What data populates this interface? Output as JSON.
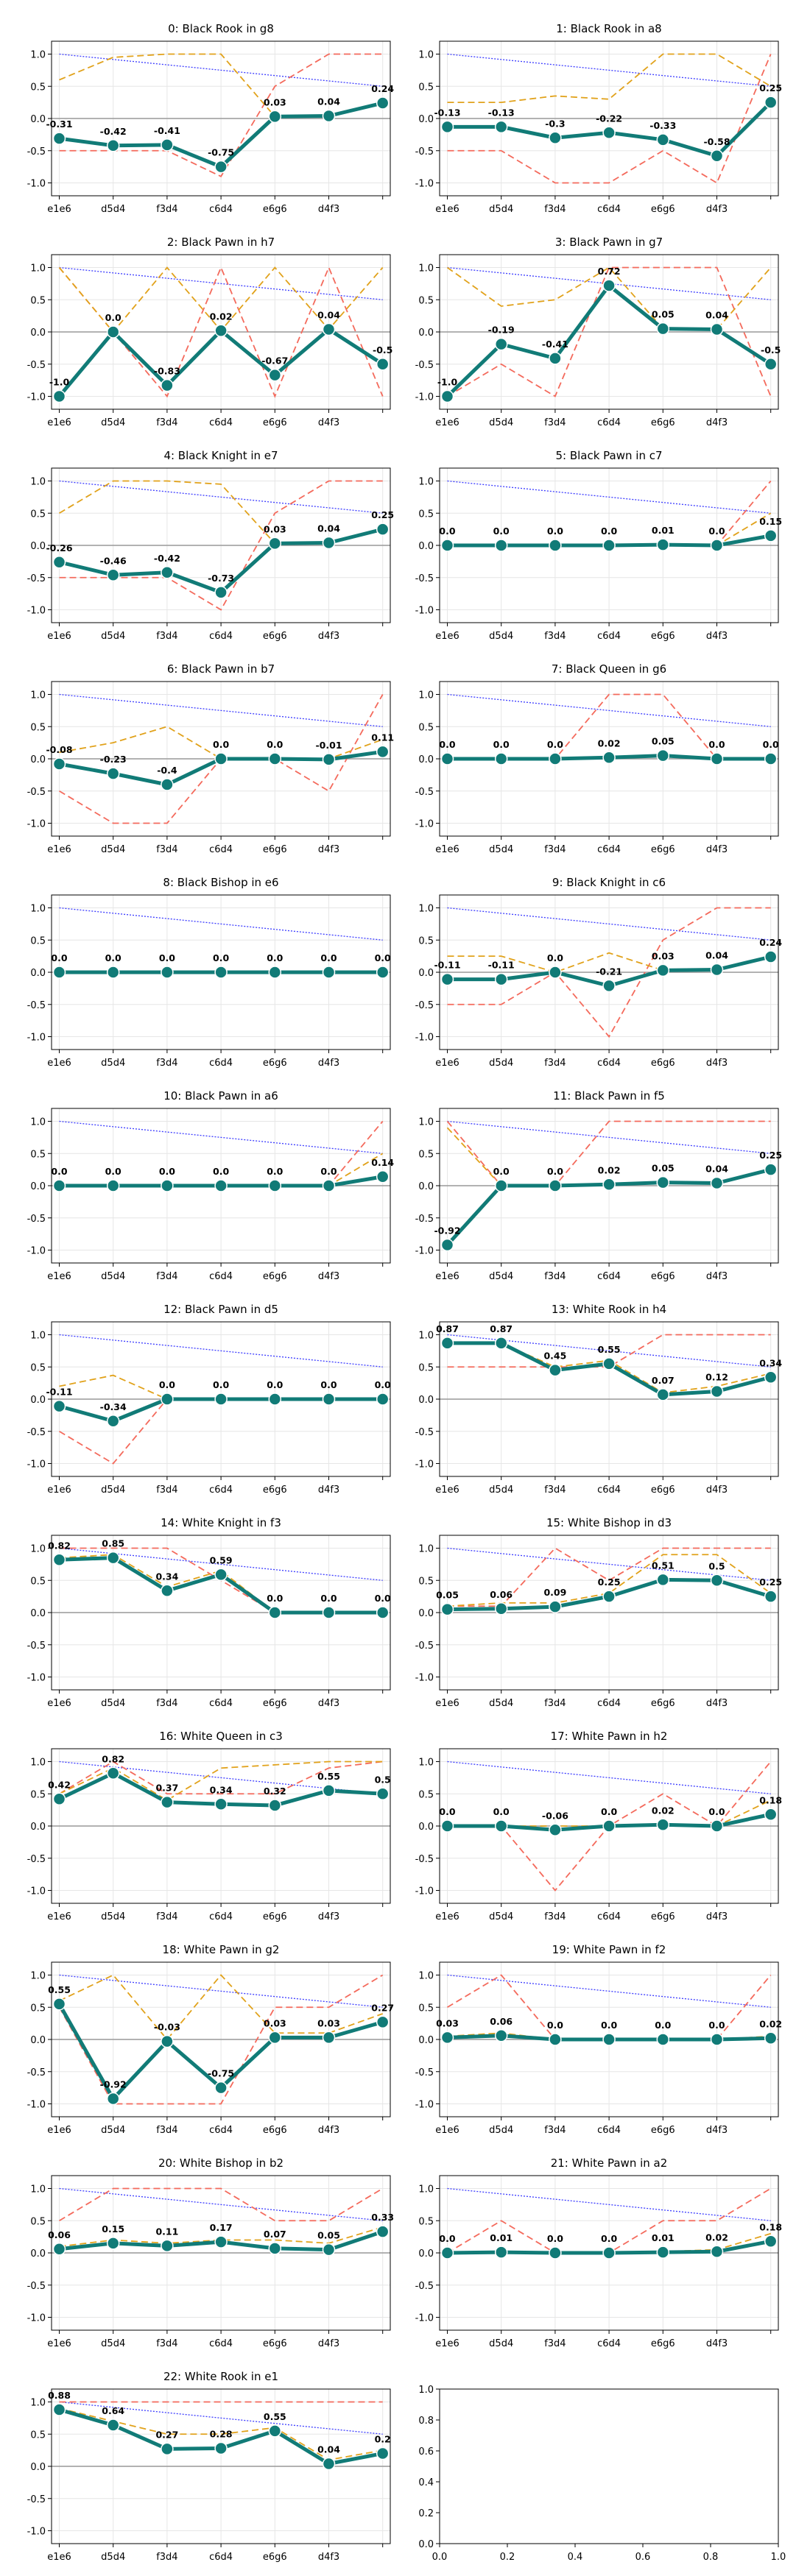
{
  "figure": {
    "empty_panel_ticks": [
      "0.0",
      "0.2",
      "0.4",
      "0.6",
      "0.8",
      "1.0"
    ]
  },
  "chart_data": {
    "type": "line",
    "x": [
      "e1e6",
      "d5d4",
      "f3d4",
      "c6d4",
      "e6g6",
      "d4f3",
      ""
    ],
    "ylim": [
      -1.2,
      1.2
    ],
    "yticks": [
      "-1.0",
      "-0.5",
      "0.0",
      "0.5",
      "1.0"
    ],
    "grid": true,
    "colors": {
      "main": "#117b77",
      "orange": "#e1a21b",
      "red": "#f46a5c",
      "blue": "#3b3bff",
      "zero": "#999999"
    },
    "panels": [
      {
        "title": "0: Black Rook in g8",
        "main": [
          -0.31,
          -0.42,
          -0.41,
          -0.75,
          0.03,
          0.04,
          0.24
        ],
        "labels": [
          "-0.31",
          "-0.42",
          "-0.41",
          "-0.75",
          "0.03",
          "0.04",
          "0.24"
        ],
        "orange": [
          0.6,
          0.95,
          1.0,
          1.0,
          0.03,
          0.05,
          0.25
        ],
        "red": [
          -0.5,
          -0.5,
          -0.5,
          -0.9,
          0.5,
          1.0,
          1.0
        ]
      },
      {
        "title": "1: Black Rook in a8",
        "main": [
          -0.13,
          -0.13,
          -0.3,
          -0.22,
          -0.33,
          -0.58,
          0.25
        ],
        "labels": [
          "-0.13",
          "-0.13",
          "-0.3",
          "-0.22",
          "-0.33",
          "-0.58",
          "0.25"
        ],
        "orange": [
          0.25,
          0.25,
          0.35,
          0.3,
          1.0,
          1.0,
          0.5
        ],
        "red": [
          -0.5,
          -0.5,
          -1.0,
          -1.0,
          -0.5,
          -1.0,
          1.0
        ]
      },
      {
        "title": "2: Black Pawn in h7",
        "main": [
          -1.0,
          0.0,
          -0.83,
          0.02,
          -0.67,
          0.04,
          -0.5
        ],
        "labels": [
          "-1.0",
          "0.0",
          "-0.83",
          "0.02",
          "-0.67",
          "0.04",
          "-0.5"
        ],
        "orange": [
          1.0,
          0.0,
          1.0,
          0.02,
          1.0,
          0.04,
          1.0
        ],
        "red": [
          1.0,
          0.0,
          -1.0,
          1.0,
          -1.0,
          1.0,
          -1.0
        ]
      },
      {
        "title": "3: Black Pawn in g7",
        "main": [
          -1.0,
          -0.19,
          -0.41,
          0.72,
          0.05,
          0.04,
          -0.5
        ],
        "labels": [
          "-1.0",
          "-0.19",
          "-0.41",
          "0.72",
          "0.05",
          "0.04",
          "-0.5"
        ],
        "orange": [
          1.0,
          0.4,
          0.5,
          1.0,
          0.05,
          0.04,
          1.0
        ],
        "red": [
          -1.0,
          -0.5,
          -1.0,
          1.0,
          1.0,
          1.0,
          -1.0
        ]
      },
      {
        "title": "4: Black Knight in e7",
        "main": [
          -0.26,
          -0.46,
          -0.42,
          -0.73,
          0.03,
          0.04,
          0.25
        ],
        "labels": [
          "-0.26",
          "-0.46",
          "-0.42",
          "-0.73",
          "0.03",
          "0.04",
          "0.25"
        ],
        "orange": [
          0.5,
          1.0,
          1.0,
          0.95,
          0.03,
          0.05,
          0.25
        ],
        "red": [
          -0.5,
          -0.5,
          -0.5,
          -1.0,
          0.5,
          1.0,
          1.0
        ]
      },
      {
        "title": "5: Black Pawn in c7",
        "main": [
          0.0,
          0.0,
          0.0,
          0.0,
          0.01,
          0.0,
          0.15
        ],
        "labels": [
          "0.0",
          "0.0",
          "0.0",
          "0.0",
          "0.01",
          "0.0",
          "0.15"
        ],
        "orange": [
          0.0,
          0.0,
          0.0,
          0.0,
          0.01,
          0.0,
          0.5
        ],
        "red": [
          0.0,
          0.0,
          0.0,
          0.0,
          0.0,
          0.0,
          1.0
        ]
      },
      {
        "title": "6: Black Pawn in b7",
        "main": [
          -0.08,
          -0.23,
          -0.4,
          0.0,
          0.0,
          -0.01,
          0.11
        ],
        "labels": [
          "-0.08",
          "-0.23",
          "-0.4",
          "0.0",
          "0.0",
          "-0.01",
          "0.11"
        ],
        "orange": [
          0.1,
          0.25,
          0.5,
          0.0,
          0.0,
          0.0,
          0.3
        ],
        "red": [
          -0.5,
          -1.0,
          -1.0,
          0.0,
          0.0,
          -0.5,
          1.0
        ]
      },
      {
        "title": "7: Black Queen in g6",
        "main": [
          0.0,
          0.0,
          0.0,
          0.02,
          0.05,
          0.0,
          0.0
        ],
        "labels": [
          "0.0",
          "0.0",
          "0.0",
          "0.02",
          "0.05",
          "0.0",
          "0.0"
        ],
        "orange": [
          0.0,
          0.0,
          0.0,
          0.02,
          0.05,
          0.0,
          0.0
        ],
        "red": [
          0.0,
          0.0,
          0.0,
          1.0,
          1.0,
          0.0,
          0.0
        ]
      },
      {
        "title": "8: Black Bishop in e6",
        "main": [
          0.0,
          0.0,
          0.0,
          0.0,
          0.0,
          0.0,
          0.0
        ],
        "labels": [
          "0.0",
          "0.0",
          "0.0",
          "0.0",
          "0.0",
          "0.0",
          "0.0"
        ],
        "orange": [
          0.0,
          0.0,
          0.0,
          0.0,
          0.0,
          0.0,
          0.0
        ],
        "red": [
          0.0,
          0.0,
          0.0,
          0.0,
          0.0,
          0.0,
          0.0
        ]
      },
      {
        "title": "9: Black Knight in c6",
        "main": [
          -0.11,
          -0.11,
          0.0,
          -0.21,
          0.03,
          0.04,
          0.24
        ],
        "labels": [
          "-0.11",
          "-0.11",
          "0.0",
          "-0.21",
          "0.03",
          "0.04",
          "0.24"
        ],
        "orange": [
          0.25,
          0.25,
          0.0,
          0.3,
          0.03,
          0.05,
          0.25
        ],
        "red": [
          -0.5,
          -0.5,
          0.0,
          -1.0,
          0.5,
          1.0,
          1.0
        ]
      },
      {
        "title": "10: Black Pawn in a6",
        "main": [
          0.0,
          0.0,
          0.0,
          0.0,
          0.0,
          0.0,
          0.14
        ],
        "labels": [
          "0.0",
          "0.0",
          "0.0",
          "0.0",
          "0.0",
          "0.0",
          "0.14"
        ],
        "orange": [
          0.0,
          0.0,
          0.0,
          0.0,
          0.0,
          0.0,
          0.5
        ],
        "red": [
          0.0,
          0.0,
          0.0,
          0.0,
          0.0,
          0.0,
          1.0
        ]
      },
      {
        "title": "11: Black Pawn in f5",
        "main": [
          -0.92,
          0.0,
          0.0,
          0.02,
          0.05,
          0.04,
          0.25
        ],
        "labels": [
          "-0.92",
          "0.0",
          "0.0",
          "0.02",
          "0.05",
          "0.04",
          "0.25"
        ],
        "orange": [
          0.9,
          0.0,
          0.0,
          0.02,
          0.05,
          0.04,
          0.25
        ],
        "red": [
          1.0,
          0.0,
          0.0,
          1.0,
          1.0,
          1.0,
          1.0
        ]
      },
      {
        "title": "12: Black Pawn in d5",
        "main": [
          -0.11,
          -0.34,
          0.0,
          0.0,
          0.0,
          0.0,
          0.0
        ],
        "labels": [
          "-0.11",
          "-0.34",
          "0.0",
          "0.0",
          "0.0",
          "0.0",
          "0.0"
        ],
        "orange": [
          0.2,
          0.37,
          0.0,
          0.0,
          0.0,
          0.0,
          0.0
        ],
        "red": [
          -0.5,
          -1.0,
          0.0,
          0.0,
          0.0,
          0.0,
          0.0
        ]
      },
      {
        "title": "13: White Rook in h4",
        "main": [
          0.87,
          0.87,
          0.45,
          0.55,
          0.07,
          0.12,
          0.34
        ],
        "labels": [
          "0.87",
          "0.87",
          "0.45",
          "0.55",
          "0.07",
          "0.12",
          "0.34"
        ],
        "orange": [
          0.87,
          0.87,
          0.5,
          0.6,
          0.1,
          0.2,
          0.4
        ],
        "red": [
          0.5,
          0.5,
          0.5,
          0.5,
          1.0,
          1.0,
          1.0
        ]
      },
      {
        "title": "14: White Knight in f3",
        "main": [
          0.82,
          0.85,
          0.34,
          0.59,
          0.0,
          0.0,
          0.0
        ],
        "labels": [
          "0.82",
          "0.85",
          "0.34",
          "0.59",
          "0.0",
          "0.0",
          "0.0"
        ],
        "orange": [
          0.85,
          0.9,
          0.4,
          0.65,
          0.0,
          0.0,
          0.0
        ],
        "red": [
          1.0,
          1.0,
          1.0,
          0.5,
          0.0,
          0.0,
          0.0
        ]
      },
      {
        "title": "15: White Bishop in d3",
        "main": [
          0.05,
          0.06,
          0.09,
          0.25,
          0.51,
          0.5,
          0.25
        ],
        "labels": [
          "0.05",
          "0.06",
          "0.09",
          "0.25",
          "0.51",
          "0.5",
          "0.25"
        ],
        "orange": [
          0.1,
          0.15,
          0.15,
          0.3,
          0.9,
          0.9,
          0.3
        ],
        "red": [
          0.1,
          0.1,
          1.0,
          0.5,
          1.0,
          1.0,
          1.0
        ]
      },
      {
        "title": "16: White Queen in c3",
        "main": [
          0.42,
          0.82,
          0.37,
          0.34,
          0.32,
          0.55,
          0.5
        ],
        "labels": [
          "0.42",
          "0.82",
          "0.37",
          "0.34",
          "0.32",
          "0.55",
          "0.5"
        ],
        "orange": [
          0.5,
          0.9,
          0.4,
          0.9,
          0.95,
          1.0,
          1.0
        ],
        "red": [
          0.5,
          1.0,
          0.5,
          0.5,
          0.5,
          0.9,
          1.0
        ]
      },
      {
        "title": "17: White Pawn in h2",
        "main": [
          0.0,
          0.0,
          -0.06,
          0.0,
          0.02,
          0.0,
          0.18
        ],
        "labels": [
          "0.0",
          "0.0",
          "-0.06",
          "0.0",
          "0.02",
          "0.0",
          "0.18"
        ],
        "orange": [
          0.0,
          0.0,
          0.0,
          0.0,
          0.02,
          0.0,
          0.4
        ],
        "red": [
          0.0,
          0.0,
          -1.0,
          0.0,
          0.5,
          0.0,
          1.0
        ]
      },
      {
        "title": "18: White Pawn in g2",
        "main": [
          0.55,
          -0.92,
          -0.03,
          -0.75,
          0.03,
          0.03,
          0.27
        ],
        "labels": [
          "0.55",
          "-0.92",
          "-0.03",
          "-0.75",
          "0.03",
          "0.03",
          "0.27"
        ],
        "orange": [
          0.6,
          1.0,
          0.0,
          1.0,
          0.1,
          0.1,
          0.4
        ],
        "red": [
          0.5,
          -1.0,
          -1.0,
          -1.0,
          0.5,
          0.5,
          1.0
        ]
      },
      {
        "title": "19: White Pawn in f2",
        "main": [
          0.03,
          0.06,
          0.0,
          0.0,
          0.0,
          0.0,
          0.02
        ],
        "labels": [
          "0.03",
          "0.06",
          "0.0",
          "0.0",
          "0.0",
          "0.0",
          "0.02"
        ],
        "orange": [
          0.05,
          0.1,
          0.0,
          0.0,
          0.0,
          0.0,
          0.05
        ],
        "red": [
          0.5,
          1.0,
          0.0,
          0.0,
          0.0,
          0.0,
          1.0
        ]
      },
      {
        "title": "20: White Bishop in b2",
        "main": [
          0.06,
          0.15,
          0.11,
          0.17,
          0.07,
          0.05,
          0.33
        ],
        "labels": [
          "0.06",
          "0.15",
          "0.11",
          "0.17",
          "0.07",
          "0.05",
          "0.33"
        ],
        "orange": [
          0.1,
          0.2,
          0.15,
          0.2,
          0.2,
          0.15,
          0.4
        ],
        "red": [
          0.5,
          1.0,
          1.0,
          1.0,
          0.5,
          0.5,
          1.0
        ]
      },
      {
        "title": "21: White Pawn in a2",
        "main": [
          0.0,
          0.01,
          0.0,
          0.0,
          0.01,
          0.02,
          0.18
        ],
        "labels": [
          "0.0",
          "0.01",
          "0.0",
          "0.0",
          "0.01",
          "0.02",
          "0.18"
        ],
        "orange": [
          0.0,
          0.02,
          0.0,
          0.0,
          0.02,
          0.05,
          0.3
        ],
        "red": [
          0.0,
          0.5,
          0.0,
          0.0,
          0.5,
          0.5,
          1.0
        ]
      },
      {
        "title": "22: White Rook in e1",
        "main": [
          0.88,
          0.64,
          0.27,
          0.28,
          0.55,
          0.04,
          0.2
        ],
        "labels": [
          "0.88",
          "0.64",
          "0.27",
          "0.28",
          "0.55",
          "0.04",
          "0.2"
        ],
        "orange": [
          0.9,
          0.7,
          0.5,
          0.5,
          0.6,
          0.1,
          0.25
        ],
        "red": [
          1.0,
          1.0,
          1.0,
          1.0,
          1.0,
          1.0,
          1.0
        ]
      }
    ]
  }
}
